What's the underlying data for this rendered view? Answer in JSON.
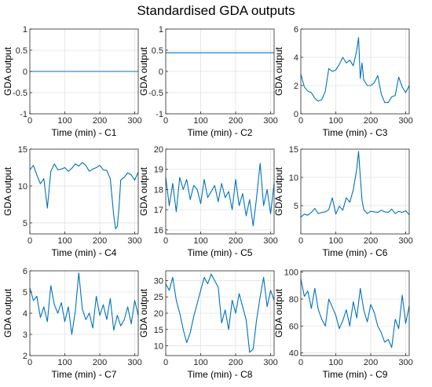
{
  "figure": {
    "title": "Standardised GDA outputs"
  },
  "colors": {
    "series": "#0072bd",
    "grid": "#e3e3e3",
    "axes": "#262626"
  },
  "chart_data": [
    {
      "type": "line",
      "xlabel": "Time (min) - C1",
      "ylabel": "GDA output",
      "xlim": [
        0,
        310
      ],
      "ylim": [
        -1,
        1
      ],
      "xticks": [
        0,
        100,
        200,
        300
      ],
      "yticks": [
        -1,
        -0.5,
        0,
        0.5,
        1
      ],
      "ytick_labels": [
        "-1",
        "-0.5",
        "0",
        "0.5",
        "1"
      ],
      "grid": true,
      "x": [
        0,
        310
      ],
      "y": [
        0,
        0
      ]
    },
    {
      "type": "line",
      "xlabel": "Time (min) - C2",
      "ylabel": "GDA output",
      "xlim": [
        0,
        310
      ],
      "ylim": [
        -1,
        1
      ],
      "xticks": [
        0,
        100,
        200,
        300
      ],
      "yticks": [
        -1,
        -0.5,
        0,
        0.5,
        1
      ],
      "ytick_labels": [
        "-1",
        "-0.5",
        "0",
        "0.5",
        "1"
      ],
      "grid": true,
      "x": [
        0,
        310
      ],
      "y": [
        0.44,
        0.44
      ]
    },
    {
      "type": "line",
      "xlabel": "Time (min) - C3",
      "ylabel": "GDA output",
      "xlim": [
        0,
        310
      ],
      "ylim": [
        0,
        6
      ],
      "xticks": [
        0,
        100,
        200,
        300
      ],
      "yticks": [
        0,
        2,
        4,
        6
      ],
      "ytick_labels": [
        "0",
        "2",
        "4",
        "6"
      ],
      "grid": true,
      "x": [
        0,
        10,
        20,
        30,
        40,
        50,
        60,
        70,
        80,
        90,
        100,
        110,
        120,
        130,
        140,
        150,
        160,
        165,
        170,
        175,
        180,
        190,
        200,
        210,
        220,
        230,
        240,
        250,
        260,
        270,
        280,
        290,
        300,
        310
      ],
      "y": [
        2.8,
        1.9,
        1.6,
        1.5,
        1.1,
        0.9,
        1.0,
        1.6,
        3.2,
        3.0,
        3.1,
        3.5,
        4.0,
        3.6,
        3.8,
        3.4,
        4.5,
        5.4,
        2.5,
        3.6,
        2.4,
        2.0,
        2.0,
        2.2,
        2.7,
        1.4,
        0.8,
        0.8,
        1.2,
        1.3,
        2.6,
        1.9,
        1.5,
        2.0
      ]
    },
    {
      "type": "line",
      "xlabel": "Time (min) - C4",
      "ylabel": "GDA output",
      "xlim": [
        0,
        310
      ],
      "ylim": [
        3.5,
        15
      ],
      "xticks": [
        0,
        100,
        200,
        300
      ],
      "yticks": [
        5,
        10,
        15
      ],
      "ytick_labels": [
        "5",
        "10",
        "15"
      ],
      "grid": true,
      "x": [
        0,
        10,
        20,
        30,
        40,
        50,
        60,
        70,
        80,
        90,
        100,
        110,
        120,
        130,
        140,
        150,
        160,
        170,
        180,
        190,
        200,
        210,
        220,
        230,
        240,
        245,
        250,
        255,
        260,
        270,
        280,
        290,
        300,
        310
      ],
      "y": [
        12.2,
        12.8,
        11.5,
        10.3,
        11.0,
        7.0,
        12.0,
        13.0,
        12.2,
        12.3,
        12.5,
        12.0,
        12.4,
        13.0,
        12.7,
        13.2,
        12.8,
        12.0,
        12.3,
        12.5,
        12.8,
        12.2,
        12.1,
        11.0,
        6.0,
        4.2,
        4.5,
        7.0,
        10.8,
        11.2,
        11.8,
        11.5,
        10.8,
        11.9
      ]
    },
    {
      "type": "line",
      "xlabel": "Time (min) - C5",
      "ylabel": "GDA output",
      "xlim": [
        0,
        310
      ],
      "ylim": [
        15.8,
        20
      ],
      "xticks": [
        0,
        100,
        200,
        300
      ],
      "yticks": [
        16,
        17,
        18,
        19,
        20
      ],
      "ytick_labels": [
        "16",
        "17",
        "18",
        "19",
        "20"
      ],
      "grid": true,
      "x": [
        0,
        10,
        20,
        30,
        40,
        50,
        60,
        70,
        80,
        90,
        100,
        110,
        120,
        130,
        140,
        150,
        160,
        170,
        180,
        190,
        200,
        210,
        220,
        230,
        240,
        250,
        260,
        270,
        280,
        290,
        300,
        310
      ],
      "y": [
        18.6,
        17.2,
        18.3,
        16.9,
        18.6,
        18.0,
        18.5,
        17.5,
        18.2,
        18.0,
        17.3,
        18.5,
        17.6,
        17.9,
        18.2,
        17.4,
        18.3,
        17.6,
        17.9,
        17.0,
        18.5,
        17.2,
        17.8,
        16.7,
        17.5,
        16.2,
        17.6,
        19.3,
        17.2,
        18.0,
        16.8,
        18.3
      ]
    },
    {
      "type": "line",
      "xlabel": "Time (min) - C6",
      "ylabel": "GDA output",
      "xlim": [
        0,
        310
      ],
      "ylim": [
        0,
        15
      ],
      "xticks": [
        0,
        100,
        200,
        300
      ],
      "yticks": [
        5,
        10,
        15
      ],
      "ytick_labels": [
        "5",
        "10",
        "15"
      ],
      "grid": true,
      "x": [
        0,
        10,
        20,
        30,
        40,
        50,
        60,
        70,
        80,
        90,
        100,
        110,
        120,
        130,
        140,
        150,
        160,
        165,
        170,
        175,
        180,
        190,
        200,
        210,
        220,
        230,
        240,
        250,
        260,
        270,
        280,
        290,
        300,
        310
      ],
      "y": [
        3.0,
        3.5,
        3.3,
        3.8,
        4.5,
        3.6,
        3.8,
        3.9,
        4.3,
        6.4,
        3.5,
        4.9,
        4.2,
        6.4,
        5.6,
        7.8,
        11.5,
        14.6,
        10.2,
        6.0,
        4.3,
        3.6,
        4.0,
        3.9,
        3.8,
        4.2,
        3.9,
        3.8,
        4.4,
        3.6,
        4.0,
        3.8,
        4.1,
        3.4
      ]
    },
    {
      "type": "line",
      "xlabel": "Time (min) - C7",
      "ylabel": "GDA output",
      "xlim": [
        0,
        310
      ],
      "ylim": [
        2,
        6
      ],
      "xticks": [
        0,
        100,
        200,
        300
      ],
      "yticks": [
        2,
        3,
        4,
        5,
        6
      ],
      "ytick_labels": [
        "2",
        "3",
        "4",
        "5",
        "6"
      ],
      "grid": true,
      "x": [
        0,
        10,
        20,
        30,
        40,
        50,
        60,
        70,
        80,
        90,
        100,
        110,
        120,
        130,
        140,
        150,
        160,
        170,
        180,
        190,
        200,
        210,
        220,
        230,
        240,
        250,
        260,
        270,
        280,
        290,
        300,
        310
      ],
      "y": [
        5.2,
        4.6,
        4.8,
        3.8,
        4.3,
        3.6,
        5.3,
        4.4,
        4.0,
        4.5,
        3.6,
        4.3,
        3.0,
        4.1,
        5.9,
        4.2,
        3.7,
        4.0,
        3.3,
        4.8,
        3.9,
        4.4,
        3.7,
        4.7,
        3.2,
        3.9,
        3.4,
        3.7,
        4.3,
        3.5,
        4.6,
        3.9
      ]
    },
    {
      "type": "line",
      "xlabel": "Time (min) - C8",
      "ylabel": "GDA output",
      "xlim": [
        0,
        310
      ],
      "ylim": [
        7,
        33
      ],
      "xticks": [
        0,
        100,
        200,
        300
      ],
      "yticks": [
        10,
        15,
        20,
        25,
        30
      ],
      "ytick_labels": [
        "10",
        "15",
        "20",
        "25",
        "30"
      ],
      "grid": true,
      "x": [
        0,
        10,
        20,
        30,
        40,
        50,
        60,
        70,
        80,
        90,
        100,
        110,
        120,
        130,
        140,
        150,
        160,
        170,
        180,
        190,
        200,
        210,
        220,
        230,
        240,
        250,
        260,
        270,
        280,
        290,
        300,
        310
      ],
      "y": [
        29,
        27,
        31,
        24,
        20,
        15,
        11,
        14,
        19,
        23,
        27,
        31,
        29,
        32,
        30,
        28,
        17,
        21,
        15,
        24,
        20,
        26,
        22,
        18,
        8,
        9,
        18,
        25,
        31,
        22,
        27,
        24
      ]
    },
    {
      "type": "line",
      "xlabel": "Time (min) - C9",
      "ylabel": "GDA output",
      "xlim": [
        0,
        310
      ],
      "ylim": [
        38,
        101
      ],
      "xticks": [
        0,
        100,
        200,
        300
      ],
      "yticks": [
        40,
        60,
        80,
        100
      ],
      "ytick_labels": [
        "40",
        "60",
        "80",
        "100"
      ],
      "grid": true,
      "x": [
        0,
        10,
        20,
        30,
        40,
        50,
        60,
        70,
        80,
        90,
        100,
        110,
        120,
        130,
        140,
        150,
        160,
        170,
        180,
        190,
        200,
        210,
        220,
        230,
        240,
        250,
        260,
        270,
        280,
        290,
        300,
        310
      ],
      "y": [
        95,
        82,
        86,
        73,
        88,
        72,
        65,
        60,
        80,
        74,
        68,
        58,
        64,
        72,
        60,
        78,
        66,
        88,
        72,
        63,
        76,
        70,
        60,
        55,
        48,
        50,
        44,
        65,
        58,
        83,
        62,
        75
      ]
    }
  ]
}
